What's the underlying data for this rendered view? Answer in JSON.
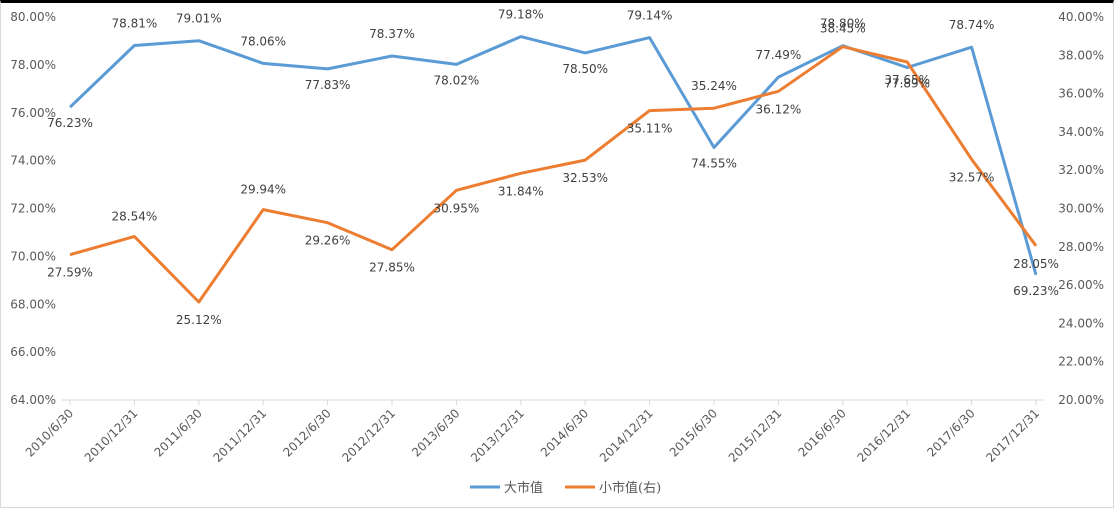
{
  "chart_data": {
    "type": "line",
    "categories": [
      "2010/6/30",
      "2010/12/31",
      "2011/6/30",
      "2011/12/31",
      "2012/6/30",
      "2012/12/31",
      "2013/6/30",
      "2013/12/31",
      "2014/6/30",
      "2014/12/31",
      "2015/6/30",
      "2015/12/31",
      "2016/6/30",
      "2016/12/31",
      "2017/6/30",
      "2017/12/31"
    ],
    "series": [
      {
        "name": "大市值",
        "axis": "left",
        "color": "#5b9bd5",
        "values": [
          76.23,
          78.81,
          79.01,
          78.06,
          77.83,
          78.37,
          78.02,
          79.18,
          78.5,
          79.14,
          74.55,
          77.49,
          78.8,
          77.89,
          78.74,
          69.23
        ],
        "labels": [
          "76.23%",
          "78.81%",
          "79.01%",
          "78.06%",
          "77.83%",
          "78.37%",
          "78.02%",
          "79.18%",
          "78.50%",
          "79.14%",
          "74.55%",
          "77.49%",
          "78.80%",
          "77.89%",
          "78.74%",
          "69.23%"
        ]
      },
      {
        "name": "小市值(右)",
        "axis": "right",
        "color": "#ed7d31",
        "values": [
          27.59,
          28.54,
          25.12,
          29.94,
          29.26,
          27.85,
          30.95,
          31.84,
          32.53,
          35.11,
          35.24,
          36.12,
          38.45,
          37.65,
          32.57,
          28.05
        ],
        "labels": [
          "27.59%",
          "28.54%",
          "25.12%",
          "29.94%",
          "29.26%",
          "27.85%",
          "30.95%",
          "31.84%",
          "32.53%",
          "35.11%",
          "35.24%",
          "36.12%",
          "38.45%",
          "37.65%",
          "32.57%",
          "28.05%"
        ]
      }
    ],
    "y_left": {
      "ylim": [
        64,
        80
      ],
      "ticks": [
        64,
        66,
        68,
        70,
        72,
        74,
        76,
        78,
        80
      ],
      "tick_labels": [
        "64.00%",
        "66.00%",
        "68.00%",
        "70.00%",
        "72.00%",
        "74.00%",
        "76.00%",
        "78.00%",
        "80.00%"
      ]
    },
    "y_right": {
      "ylim": [
        20,
        40
      ],
      "ticks": [
        20,
        22,
        24,
        26,
        28,
        30,
        32,
        34,
        36,
        38,
        40
      ],
      "tick_labels": [
        "20.00%",
        "22.00%",
        "24.00%",
        "26.00%",
        "28.00%",
        "30.00%",
        "32.00%",
        "34.00%",
        "36.00%",
        "38.00%",
        "40.00%"
      ]
    },
    "grid": false,
    "legend": "bottom-center"
  }
}
